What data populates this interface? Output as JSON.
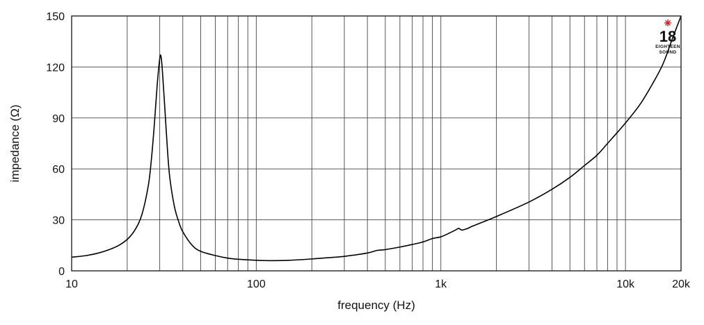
{
  "chart_data": {
    "type": "line",
    "xlabel": "frequency (Hz)",
    "ylabel": "impedance (Ω)",
    "x_scale": "log",
    "xlim": [
      10,
      20000
    ],
    "ylim": [
      0,
      150
    ],
    "grid": true,
    "x_ticks": [
      {
        "value": 10,
        "label": "10"
      },
      {
        "value": 100,
        "label": "100"
      },
      {
        "value": 1000,
        "label": "1k"
      },
      {
        "value": 10000,
        "label": "10k"
      },
      {
        "value": 20000,
        "label": "20k"
      }
    ],
    "y_ticks": [
      {
        "value": 0,
        "label": "0"
      },
      {
        "value": 30,
        "label": "30"
      },
      {
        "value": 60,
        "label": "60"
      },
      {
        "value": 90,
        "label": "90"
      },
      {
        "value": 120,
        "label": "120"
      },
      {
        "value": 150,
        "label": "150"
      }
    ],
    "series": [
      {
        "color": "#000000",
        "points": [
          [
            10,
            8
          ],
          [
            12,
            9
          ],
          [
            14,
            10.5
          ],
          [
            16,
            12.5
          ],
          [
            18,
            15
          ],
          [
            20,
            18.5
          ],
          [
            22,
            24
          ],
          [
            24,
            33
          ],
          [
            26,
            50
          ],
          [
            27,
            65
          ],
          [
            28,
            85
          ],
          [
            29,
            108
          ],
          [
            30,
            125
          ],
          [
            30.5,
            126
          ],
          [
            31,
            118
          ],
          [
            32,
            95
          ],
          [
            33,
            72
          ],
          [
            34,
            55
          ],
          [
            36,
            38
          ],
          [
            38,
            29
          ],
          [
            40,
            23
          ],
          [
            45,
            15
          ],
          [
            50,
            11.5
          ],
          [
            60,
            9
          ],
          [
            70,
            7.5
          ],
          [
            80,
            6.8
          ],
          [
            100,
            6.2
          ],
          [
            120,
            6.0
          ],
          [
            150,
            6.2
          ],
          [
            200,
            7.0
          ],
          [
            250,
            7.8
          ],
          [
            300,
            8.5
          ],
          [
            400,
            10.5
          ],
          [
            450,
            12
          ],
          [
            500,
            12.5
          ],
          [
            600,
            14
          ],
          [
            700,
            15.5
          ],
          [
            800,
            17
          ],
          [
            900,
            19
          ],
          [
            1000,
            20
          ],
          [
            1100,
            22
          ],
          [
            1200,
            24
          ],
          [
            1250,
            25
          ],
          [
            1300,
            24
          ],
          [
            1400,
            25
          ],
          [
            1500,
            26.5
          ],
          [
            2000,
            32
          ],
          [
            3000,
            40.5
          ],
          [
            4000,
            48
          ],
          [
            5000,
            55
          ],
          [
            6000,
            62
          ],
          [
            7000,
            68
          ],
          [
            8000,
            75
          ],
          [
            10000,
            87
          ],
          [
            12000,
            98
          ],
          [
            14000,
            110
          ],
          [
            16000,
            122
          ],
          [
            18000,
            137
          ],
          [
            20000,
            150
          ]
        ]
      }
    ]
  },
  "logo": {
    "number": "18",
    "line1": "EIGHTEEN",
    "line2": "SOUND",
    "accent": "#d21f26",
    "mark": "star-icon"
  }
}
